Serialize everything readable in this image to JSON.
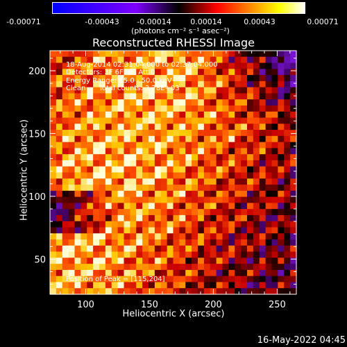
{
  "colorbar": {
    "ticks": [
      "-0.00071",
      "-0.00043",
      "-0.00014",
      "0.00014",
      "0.00043",
      "0.00071"
    ],
    "units": "(photons cm⁻² s⁻¹ asec⁻²)"
  },
  "info_lines": [
    "18-Aug-2014 02:31:04.000 to 02:37:04.000",
    "Detectors: 3F 6F 9F, Att 0",
    "Energy Range: 25.0 - 50.0 keV",
    "Clean      Total counts: 3.78E+03"
  ],
  "peak_label": "Position of Peak = [115,204]",
  "timestamp": "16-May-2022 04:45",
  "chart_data": {
    "type": "heatmap",
    "title": "Reconstructed RHESSI Image",
    "xlabel": "Heliocentric X (arcsec)",
    "ylabel": "Heliocentric Y (arcsec)",
    "xlim": [
      72,
      265
    ],
    "ylim": [
      22,
      216
    ],
    "x_ticks": [
      100,
      150,
      200,
      250
    ],
    "y_ticks": [
      50,
      100,
      150,
      200
    ],
    "colorbar_range": [
      -0.00071,
      0.00071
    ],
    "peak": [
      115,
      204
    ],
    "colors": {
      "neg_low": "#0000ff",
      "neg_high": "#7f00ff",
      "zero": "#000000",
      "mid": "#ff0000",
      "high": "#ffff00",
      "max": "#ffffff"
    }
  }
}
